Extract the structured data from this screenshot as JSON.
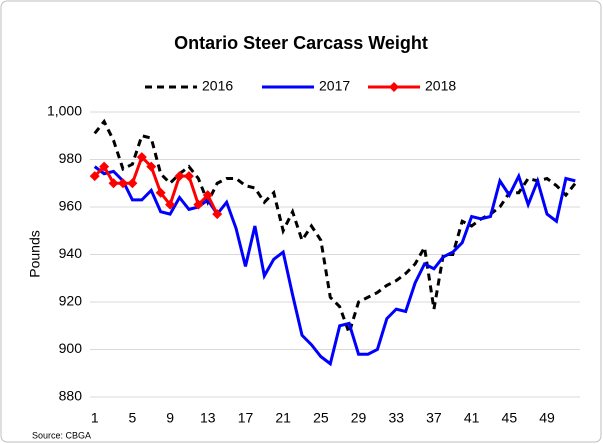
{
  "chart_data": {
    "type": "line",
    "title": "Ontario Steer Carcass Weight",
    "y_label": "Pounds",
    "source": "Source:  CBGA",
    "x": [
      1,
      2,
      3,
      4,
      5,
      6,
      7,
      8,
      9,
      10,
      11,
      12,
      13,
      14,
      15,
      16,
      17,
      18,
      19,
      20,
      21,
      22,
      23,
      24,
      25,
      26,
      27,
      28,
      29,
      30,
      31,
      32,
      33,
      34,
      35,
      36,
      37,
      38,
      39,
      40,
      41,
      42,
      43,
      44,
      45,
      46,
      47,
      48,
      49,
      50,
      51,
      52
    ],
    "xlim": [
      0.5,
      52.5
    ],
    "xticks": [
      1,
      5,
      9,
      13,
      17,
      21,
      25,
      29,
      33,
      37,
      41,
      45,
      49
    ],
    "ylim": [
      880,
      1000
    ],
    "yticks": [
      880,
      900,
      920,
      940,
      960,
      980,
      {
        "value": 1000,
        "label": "1,000"
      }
    ],
    "grid": true,
    "legend": "top",
    "series": [
      {
        "name": "2016",
        "color": "#000000",
        "line_style": "dashed",
        "marker": "none",
        "values": [
          991,
          996,
          988,
          976,
          978,
          990,
          989,
          974,
          970,
          974,
          977,
          972,
          962,
          970,
          972,
          972,
          969,
          968,
          962,
          966,
          950,
          958,
          946,
          952,
          946,
          922,
          918,
          907,
          920,
          922,
          924,
          927,
          929,
          932,
          936,
          943,
          917,
          940,
          940,
          954,
          952,
          955,
          957,
          960,
          966,
          966,
          972,
          971,
          972,
          969,
          965,
          970
        ]
      },
      {
        "name": "2017",
        "color": "#0000ff",
        "line_style": "solid",
        "marker": "none",
        "values": [
          977,
          974,
          975,
          971,
          963,
          963,
          967,
          958,
          957,
          964,
          959,
          960,
          963,
          957,
          962,
          951,
          935,
          952,
          931,
          938,
          941,
          923,
          906,
          902,
          897,
          894,
          910,
          911,
          898,
          898,
          900,
          913,
          917,
          916,
          928,
          936,
          934,
          939,
          941,
          945,
          956,
          955,
          956,
          971,
          965,
          973,
          961,
          971,
          957,
          954,
          972,
          971
        ]
      },
      {
        "name": "2018",
        "color": "#ff0000",
        "line_style": "solid",
        "marker": "diamond",
        "values": [
          973,
          977,
          970,
          970,
          970,
          981,
          977,
          966,
          961,
          973,
          973,
          961,
          965,
          957,
          null,
          null,
          null,
          null,
          null,
          null,
          null,
          null,
          null,
          null,
          null,
          null,
          null,
          null,
          null,
          null,
          null,
          null,
          null,
          null,
          null,
          null,
          null,
          null,
          null,
          null,
          null,
          null,
          null,
          null,
          null,
          null,
          null,
          null,
          null,
          null,
          null,
          null
        ]
      }
    ]
  }
}
